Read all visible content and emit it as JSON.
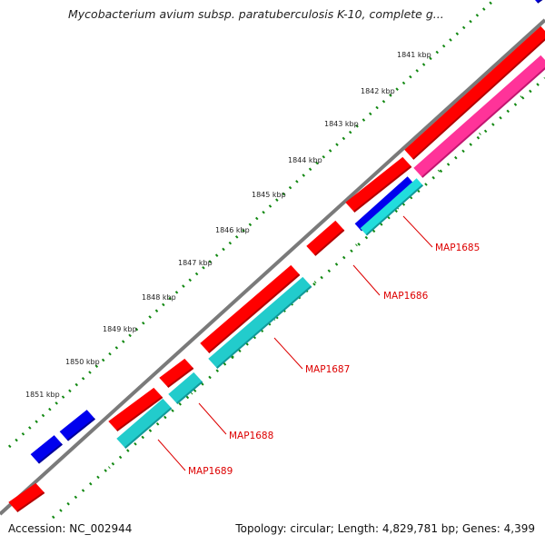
{
  "title": "Mycobacterium avium subsp. paratuberculosis K-10, complete g...",
  "ruler": [
    "1841 kbp",
    "1842 kbp",
    "1843 kbp",
    "1844 kbp",
    "1845 kbp",
    "1846 kbp",
    "1847 kbp",
    "1848 kbp",
    "1849 kbp",
    "1850 kbp",
    "1851 kbp"
  ],
  "gene_labels": [
    "MAP1685",
    "MAP1686",
    "MAP1687",
    "MAP1688",
    "MAP1689"
  ],
  "colors": {
    "cds_forward": "#ff0000",
    "cds_reverse": "#ff0000",
    "track_blue": "#0000ee",
    "track_cyan": "#22cccc",
    "track_magenta": "#ff3399",
    "backbone": "#888888",
    "tick_green": "#118811",
    "label_red": "#dd0000"
  },
  "footer": {
    "accession": "Accession: NC_002944",
    "stats": "Topology: circular; Length: 4,829,781 bp; Genes: 4,399"
  }
}
